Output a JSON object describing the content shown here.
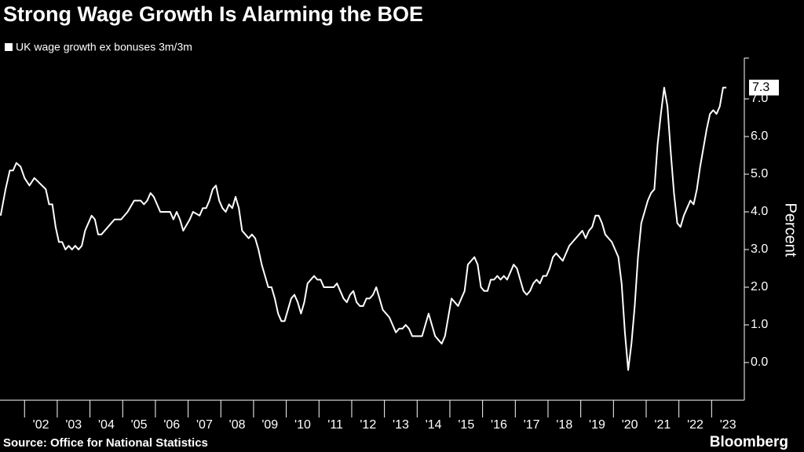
{
  "chart_data": {
    "type": "line",
    "title": "Strong Wage Growth Is Alarming the BOE",
    "ylabel": "Percent",
    "source": "Source: Office for National Statistics",
    "brand": "Bloomberg",
    "xlim": [
      2001.25,
      2024
    ],
    "xticks": [
      {
        "value": 2002,
        "label": "'02"
      },
      {
        "value": 2003,
        "label": "'03"
      },
      {
        "value": 2004,
        "label": "'04"
      },
      {
        "value": 2005,
        "label": "'05"
      },
      {
        "value": 2006,
        "label": "'06"
      },
      {
        "value": 2007,
        "label": "'07"
      },
      {
        "value": 2008,
        "label": "'08"
      },
      {
        "value": 2009,
        "label": "'09"
      },
      {
        "value": 2010,
        "label": "'10"
      },
      {
        "value": 2011,
        "label": "'11"
      },
      {
        "value": 2012,
        "label": "'12"
      },
      {
        "value": 2013,
        "label": "'13"
      },
      {
        "value": 2014,
        "label": "'14"
      },
      {
        "value": 2015,
        "label": "'15"
      },
      {
        "value": 2016,
        "label": "'16"
      },
      {
        "value": 2017,
        "label": "'17"
      },
      {
        "value": 2018,
        "label": "'18"
      },
      {
        "value": 2019,
        "label": "'19"
      },
      {
        "value": 2020,
        "label": "'20"
      },
      {
        "value": 2021,
        "label": "'21"
      },
      {
        "value": 2022,
        "label": "'22"
      },
      {
        "value": 2023,
        "label": "'23"
      }
    ],
    "ylim": [
      -1,
      8
    ],
    "yticks": [
      {
        "value": 0,
        "label": "0.0"
      },
      {
        "value": 1,
        "label": "1.0"
      },
      {
        "value": 2,
        "label": "2.0"
      },
      {
        "value": 3,
        "label": "3.0"
      },
      {
        "value": 4,
        "label": "4.0"
      },
      {
        "value": 5,
        "label": "5.0"
      },
      {
        "value": 6,
        "label": "6.0"
      },
      {
        "value": 7,
        "label": "7.0"
      }
    ],
    "grid": false,
    "x": [
      2001.27,
      2001.42,
      2001.55,
      2001.65,
      2001.75,
      2001.88,
      2002.0,
      2002.15,
      2002.3,
      2002.65,
      2002.75,
      2002.85,
      2002.95,
      2003.05,
      2003.15,
      2003.25,
      2003.35,
      2003.45,
      2003.55,
      2003.65,
      2003.75,
      2003.85,
      2004.05,
      2004.15,
      2004.25,
      2004.35,
      2004.55,
      2004.75,
      2004.95,
      2005.15,
      2005.35,
      2005.55,
      2005.65,
      2005.75,
      2005.85,
      2005.95,
      2006.05,
      2006.15,
      2006.45,
      2006.55,
      2006.65,
      2006.75,
      2006.85,
      2007.05,
      2007.15,
      2007.35,
      2007.45,
      2007.55,
      2007.65,
      2007.75,
      2007.85,
      2007.95,
      2008.05,
      2008.15,
      2008.25,
      2008.35,
      2008.45,
      2008.55,
      2008.65,
      2008.75,
      2008.85,
      2008.95,
      2009.05,
      2009.15,
      2009.25,
      2009.35,
      2009.45,
      2009.55,
      2009.65,
      2009.75,
      2009.85,
      2009.95,
      2010.05,
      2010.15,
      2010.25,
      2010.35,
      2010.45,
      2010.55,
      2010.65,
      2010.75,
      2010.85,
      2010.95,
      2011.05,
      2011.15,
      2011.45,
      2011.55,
      2011.65,
      2011.75,
      2011.85,
      2011.95,
      2012.05,
      2012.15,
      2012.25,
      2012.35,
      2012.45,
      2012.55,
      2012.65,
      2012.75,
      2012.85,
      2012.95,
      2013.15,
      2013.25,
      2013.35,
      2013.45,
      2013.55,
      2013.65,
      2013.75,
      2013.85,
      2014.05,
      2014.15,
      2014.25,
      2014.35,
      2014.45,
      2014.55,
      2014.65,
      2014.75,
      2014.85,
      2014.95,
      2015.05,
      2015.15,
      2015.25,
      2015.45,
      2015.55,
      2015.65,
      2015.75,
      2015.85,
      2015.95,
      2016.05,
      2016.15,
      2016.25,
      2016.35,
      2016.45,
      2016.55,
      2016.65,
      2016.75,
      2016.85,
      2016.95,
      2017.05,
      2017.15,
      2017.25,
      2017.35,
      2017.45,
      2017.55,
      2017.65,
      2017.75,
      2017.85,
      2017.95,
      2018.05,
      2018.15,
      2018.25,
      2018.35,
      2018.45,
      2018.55,
      2018.65,
      2018.75,
      2018.95,
      2019.05,
      2019.15,
      2019.25,
      2019.35,
      2019.45,
      2019.55,
      2019.65,
      2019.75,
      2019.85,
      2019.95,
      2020.05,
      2020.15,
      2020.25,
      2020.35,
      2020.45,
      2020.55,
      2020.65,
      2020.75,
      2020.85,
      2020.95,
      2021.05,
      2021.15,
      2021.25,
      2021.35,
      2021.45,
      2021.55,
      2021.65,
      2021.75,
      2021.85,
      2021.95,
      2022.05,
      2022.15,
      2022.25,
      2022.35,
      2022.45,
      2022.55,
      2022.65,
      2022.75,
      2022.85,
      2022.95,
      2023.05,
      2023.15,
      2023.25,
      2023.35,
      2023.45
    ],
    "series": [
      {
        "name": "UK wage growth ex bonuses 3m/3m",
        "color": "#ffffff",
        "values": [
          3.9,
          4.6,
          5.1,
          5.1,
          5.3,
          5.2,
          4.9,
          4.7,
          4.9,
          4.6,
          4.2,
          4.2,
          3.6,
          3.2,
          3.2,
          3.0,
          3.1,
          3.0,
          3.1,
          3.0,
          3.1,
          3.5,
          3.9,
          3.8,
          3.4,
          3.4,
          3.6,
          3.8,
          3.8,
          4.0,
          4.3,
          4.3,
          4.2,
          4.3,
          4.5,
          4.4,
          4.2,
          4.0,
          4.0,
          3.8,
          4.0,
          3.8,
          3.5,
          3.8,
          4.0,
          3.9,
          4.1,
          4.1,
          4.3,
          4.6,
          4.7,
          4.3,
          4.1,
          4.0,
          4.2,
          4.1,
          4.4,
          4.1,
          3.5,
          3.4,
          3.3,
          3.4,
          3.3,
          3.0,
          2.6,
          2.3,
          2.0,
          2.0,
          1.7,
          1.3,
          1.1,
          1.1,
          1.4,
          1.7,
          1.8,
          1.6,
          1.3,
          1.6,
          2.1,
          2.2,
          2.3,
          2.2,
          2.2,
          2.0,
          2.0,
          2.1,
          1.9,
          1.7,
          1.6,
          1.8,
          1.9,
          1.6,
          1.5,
          1.5,
          1.7,
          1.7,
          1.8,
          2.0,
          1.7,
          1.4,
          1.2,
          1.0,
          0.8,
          0.9,
          0.9,
          1.0,
          0.9,
          0.7,
          0.7,
          0.7,
          1.0,
          1.3,
          1.0,
          0.7,
          0.6,
          0.5,
          0.7,
          1.2,
          1.7,
          1.6,
          1.5,
          1.9,
          2.6,
          2.7,
          2.8,
          2.6,
          2.0,
          1.9,
          1.9,
          2.2,
          2.2,
          2.3,
          2.2,
          2.3,
          2.2,
          2.4,
          2.6,
          2.5,
          2.2,
          1.9,
          1.8,
          1.9,
          2.1,
          2.2,
          2.1,
          2.3,
          2.3,
          2.5,
          2.8,
          2.9,
          2.8,
          2.7,
          2.9,
          3.1,
          3.2,
          3.4,
          3.5,
          3.3,
          3.5,
          3.6,
          3.9,
          3.9,
          3.7,
          3.4,
          3.3,
          3.2,
          3.0,
          2.8,
          2.1,
          0.8,
          -0.2,
          0.5,
          1.5,
          2.8,
          3.7,
          4.0,
          4.3,
          4.5,
          4.6,
          5.8,
          6.6,
          7.3,
          6.8,
          5.6,
          4.5,
          3.7,
          3.6,
          3.9,
          4.1,
          4.3,
          4.2,
          4.6,
          5.2,
          5.7,
          6.2,
          6.6,
          6.7,
          6.6,
          6.8,
          7.3,
          7.3
        ]
      }
    ]
  }
}
